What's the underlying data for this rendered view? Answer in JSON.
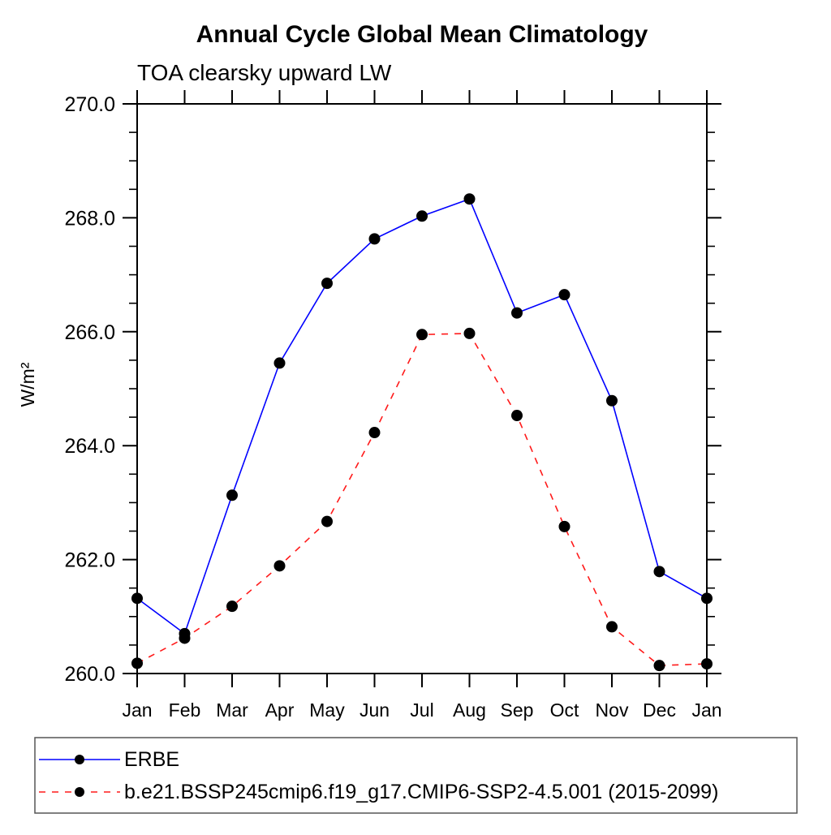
{
  "chart_data": {
    "type": "line",
    "title": "Annual Cycle Global Mean Climatology",
    "subtitle": "TOA clearsky upward LW",
    "ylabel": "W/m²",
    "x_categories": [
      "Jan",
      "Feb",
      "Mar",
      "Apr",
      "May",
      "Jun",
      "Jul",
      "Aug",
      "Sep",
      "Oct",
      "Nov",
      "Dec",
      "Jan"
    ],
    "ylim": [
      260.0,
      270.0
    ],
    "ytick_major_values": [
      260.0,
      262.0,
      264.0,
      266.0,
      268.0,
      270.0
    ],
    "ytick_labels": [
      "260.0",
      "262.0",
      "264.0",
      "266.0",
      "268.0",
      "270.0"
    ],
    "ytick_minor_step": 0.5,
    "grid": false,
    "legend_position": "bottom",
    "frame_color": "#000000",
    "marker_color": "#000000",
    "series": [
      {
        "name": "ERBE",
        "color": "#0000ff",
        "style": "solid",
        "marker": "filled-circle",
        "values": [
          261.32,
          260.7,
          263.13,
          265.45,
          266.85,
          267.63,
          268.03,
          268.33,
          266.33,
          266.65,
          264.79,
          261.79,
          261.32
        ]
      },
      {
        "name": "b.e21.BSSP245cmip6.f19_g17.CMIP6-SSP2-4.5.001 (2015-2099)",
        "color": "#ff1a1a",
        "style": "dashed",
        "marker": "filled-circle",
        "values": [
          260.18,
          260.62,
          261.18,
          261.89,
          262.67,
          264.23,
          265.95,
          265.97,
          264.53,
          262.58,
          260.82,
          260.14,
          260.17
        ]
      }
    ]
  }
}
